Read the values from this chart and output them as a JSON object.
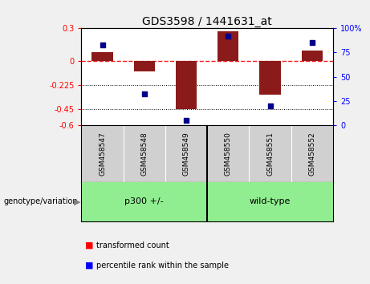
{
  "title": "GDS3598 / 1441631_at",
  "samples": [
    "GSM458547",
    "GSM458548",
    "GSM458549",
    "GSM458550",
    "GSM458551",
    "GSM458552"
  ],
  "transformed_counts": [
    0.08,
    -0.1,
    -0.45,
    0.27,
    -0.32,
    0.09
  ],
  "percentile_ranks": [
    83,
    32,
    5,
    92,
    20,
    85
  ],
  "groups": [
    "p300 +/-",
    "p300 +/-",
    "p300 +/-",
    "wild-type",
    "wild-type",
    "wild-type"
  ],
  "group_labels": [
    "p300 +/-",
    "wild-type"
  ],
  "bar_color": "#8B1A1A",
  "dot_color": "#00008B",
  "ylim_left": [
    -0.6,
    0.3
  ],
  "ylim_right": [
    0,
    100
  ],
  "yticks_left": [
    0.3,
    0,
    -0.225,
    -0.45,
    -0.6
  ],
  "yticks_right": [
    100,
    75,
    50,
    25,
    0
  ],
  "dotted_lines": [
    -0.225,
    -0.45
  ],
  "bg_color": "#f0f0f0",
  "plot_bg": "#ffffff",
  "sample_bg": "#d0d0d0",
  "green_color": "#90EE90",
  "bar_width": 0.5,
  "legend_red_label": "transformed count",
  "legend_blue_label": "percentile rank within the sample",
  "genotype_label": "genotype/variation"
}
